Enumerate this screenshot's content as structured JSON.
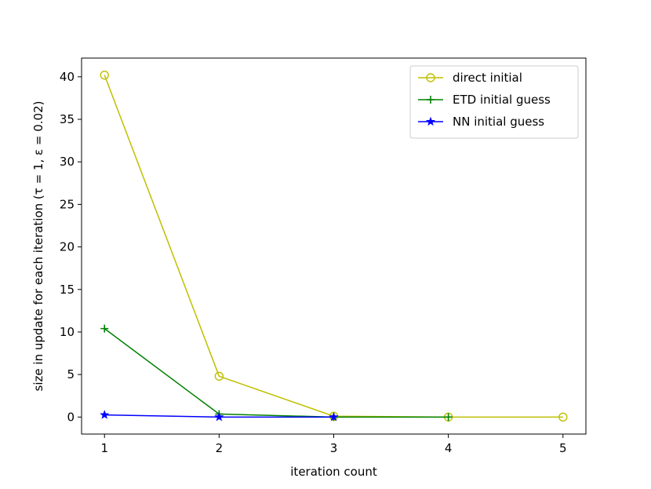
{
  "chart_data": {
    "type": "line",
    "title": "",
    "xlabel": "iteration count",
    "ylabel": "size in update for each iteration (τ = 1, ε = 0.02)",
    "xlim": [
      0.8,
      5.2
    ],
    "ylim": [
      -2.0,
      42.2
    ],
    "xticks": [
      1,
      2,
      3,
      4,
      5
    ],
    "yticks": [
      0,
      5,
      10,
      15,
      20,
      25,
      30,
      35,
      40
    ],
    "grid": false,
    "legend_position": "top-right",
    "series": [
      {
        "name": "direct initial",
        "color": "#bfbf00",
        "marker": "circle-open",
        "x": [
          1,
          2,
          3,
          4,
          5
        ],
        "y": [
          40.2,
          4.8,
          0.1,
          0.0,
          0.0
        ]
      },
      {
        "name": "ETD initial guess",
        "color": "#008000",
        "marker": "plus",
        "x": [
          1,
          2,
          3,
          4
        ],
        "y": [
          10.4,
          0.35,
          0.0,
          0.0
        ]
      },
      {
        "name": "NN initial guess",
        "color": "#0000ff",
        "marker": "star",
        "x": [
          1,
          2,
          3
        ],
        "y": [
          0.25,
          0.0,
          0.0
        ]
      }
    ]
  }
}
